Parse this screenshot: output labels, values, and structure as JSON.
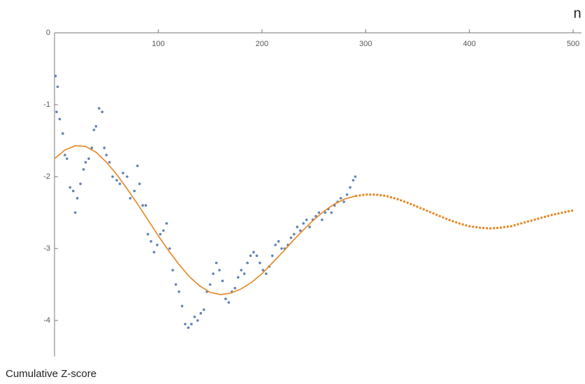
{
  "chart_data": {
    "type": "scatter",
    "x_label": "n",
    "y_label": "Cumulative Z-score",
    "xlim": [
      0,
      500
    ],
    "ylim": [
      -4.5,
      0
    ],
    "xticks": [
      100,
      200,
      300,
      400,
      500
    ],
    "yticks": [
      0,
      -1,
      -2,
      -3,
      -4
    ],
    "series": [
      {
        "type": "scatter",
        "color": "#5e81b5",
        "x": [
          1,
          2,
          3,
          5,
          8,
          10,
          12,
          15,
          18,
          20,
          22,
          25,
          28,
          30,
          33,
          36,
          38,
          40,
          43,
          46,
          48,
          50,
          53,
          56,
          60,
          63,
          66,
          70,
          73,
          77,
          80,
          82,
          85,
          88,
          90,
          93,
          96,
          99,
          102,
          105,
          108,
          111,
          114,
          117,
          120,
          123,
          126,
          129,
          132,
          135,
          138,
          141,
          144,
          147,
          150,
          153,
          156,
          159,
          162,
          165,
          168,
          171,
          174,
          177,
          180,
          183,
          186,
          189,
          192,
          195,
          198,
          201,
          204,
          207,
          210,
          213,
          216,
          219,
          222,
          225,
          228,
          231,
          234,
          237,
          240,
          243,
          246,
          249,
          252,
          255,
          258,
          261,
          264,
          267,
          270,
          273,
          276,
          279,
          282,
          285,
          288,
          290
        ],
        "values": [
          -0.6,
          -1.1,
          -0.75,
          -1.2,
          -1.4,
          -1.7,
          -1.75,
          -2.15,
          -2.2,
          -2.5,
          -2.3,
          -2.1,
          -1.9,
          -1.8,
          -1.75,
          -1.6,
          -1.35,
          -1.3,
          -1.05,
          -1.1,
          -1.6,
          -1.7,
          -1.8,
          -2.0,
          -2.05,
          -2.1,
          -1.95,
          -2.0,
          -2.3,
          -2.2,
          -1.85,
          -2.1,
          -2.4,
          -2.4,
          -2.8,
          -2.9,
          -3.05,
          -2.95,
          -2.8,
          -2.75,
          -2.65,
          -3.0,
          -3.3,
          -3.5,
          -3.6,
          -3.8,
          -4.05,
          -4.1,
          -4.05,
          -3.95,
          -4.0,
          -3.9,
          -3.85,
          -3.6,
          -3.5,
          -3.35,
          -3.2,
          -3.3,
          -3.45,
          -3.7,
          -3.75,
          -3.6,
          -3.55,
          -3.4,
          -3.3,
          -3.35,
          -3.2,
          -3.1,
          -3.05,
          -3.1,
          -3.2,
          -3.3,
          -3.35,
          -3.25,
          -3.1,
          -2.95,
          -2.9,
          -3.0,
          -3.0,
          -2.95,
          -2.85,
          -2.8,
          -2.7,
          -2.75,
          -2.65,
          -2.6,
          -2.7,
          -2.6,
          -2.55,
          -2.5,
          -2.6,
          -2.5,
          -2.45,
          -2.5,
          -2.4,
          -2.35,
          -2.3,
          -2.35,
          -2.25,
          -2.15,
          -2.05,
          -2.0
        ]
      },
      {
        "type": "line",
        "style": "solid",
        "color": "#e8841e",
        "x": [
          0,
          10,
          20,
          30,
          40,
          50,
          60,
          70,
          80,
          90,
          100,
          110,
          120,
          130,
          140,
          150,
          160,
          170,
          180,
          190,
          200,
          210,
          220,
          230,
          240,
          250,
          260,
          270,
          280,
          290
        ],
        "values": [
          -1.75,
          -1.63,
          -1.57,
          -1.58,
          -1.66,
          -1.8,
          -1.97,
          -2.17,
          -2.38,
          -2.6,
          -2.82,
          -3.03,
          -3.22,
          -3.39,
          -3.52,
          -3.61,
          -3.64,
          -3.62,
          -3.56,
          -3.47,
          -3.35,
          -3.2,
          -3.05,
          -2.89,
          -2.74,
          -2.6,
          -2.48,
          -2.38,
          -2.31,
          -2.27
        ]
      },
      {
        "type": "line",
        "style": "dotted",
        "color": "#e8841e",
        "x": [
          290,
          300,
          310,
          320,
          330,
          340,
          350,
          360,
          370,
          380,
          390,
          400,
          410,
          420,
          430,
          440,
          450,
          460,
          470,
          480,
          490,
          500
        ],
        "values": [
          -2.27,
          -2.25,
          -2.25,
          -2.27,
          -2.31,
          -2.36,
          -2.42,
          -2.48,
          -2.54,
          -2.6,
          -2.65,
          -2.69,
          -2.71,
          -2.72,
          -2.71,
          -2.69,
          -2.65,
          -2.61,
          -2.57,
          -2.53,
          -2.5,
          -2.47
        ]
      }
    ]
  }
}
